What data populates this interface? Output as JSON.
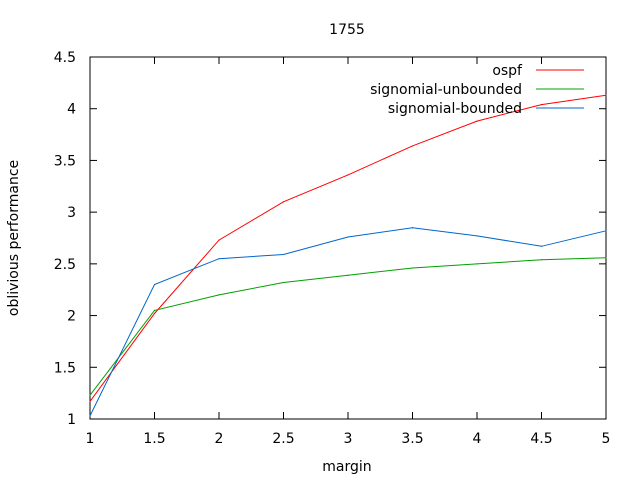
{
  "chart_data": {
    "type": "line",
    "title": "1755",
    "xlabel": "margin",
    "ylabel": "oblivious performance",
    "xlim": [
      1,
      5
    ],
    "ylim": [
      1,
      4.5
    ],
    "xticks": [
      1,
      1.5,
      2,
      2.5,
      3,
      3.5,
      4,
      4.5,
      5
    ],
    "yticks": [
      1,
      1.5,
      2,
      2.5,
      3,
      3.5,
      4,
      4.5
    ],
    "xtick_labels": [
      "1",
      "1.5",
      "2",
      "2.5",
      "3",
      "3.5",
      "4",
      "4.5",
      "5"
    ],
    "ytick_labels": [
      "1",
      "1.5",
      "2",
      "2.5",
      "3",
      "3.5",
      "4",
      "4.5"
    ],
    "grid": false,
    "legend_position": "top-right",
    "x": [
      1,
      1.5,
      2,
      2.5,
      3,
      3.5,
      4,
      4.5,
      5
    ],
    "series": [
      {
        "name": "ospf",
        "color": "#ff0000",
        "values": [
          1.17,
          2.02,
          2.73,
          3.1,
          3.36,
          3.64,
          3.88,
          4.04,
          4.13
        ]
      },
      {
        "name": "signomial-unbounded",
        "color": "#00a000",
        "values": [
          1.23,
          2.05,
          2.2,
          2.32,
          2.39,
          2.46,
          2.5,
          2.54,
          2.56
        ]
      },
      {
        "name": "signomial-bounded",
        "color": "#0066cc",
        "values": [
          1.03,
          2.3,
          2.55,
          2.59,
          2.76,
          2.85,
          2.77,
          2.67,
          2.82
        ]
      }
    ]
  }
}
